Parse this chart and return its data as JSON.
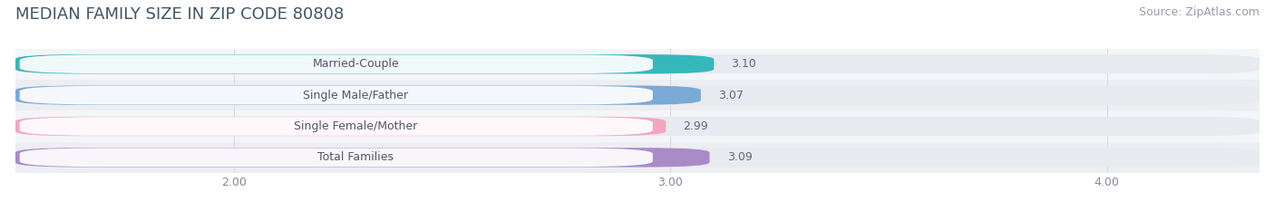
{
  "title": "MEDIAN FAMILY SIZE IN ZIP CODE 80808",
  "source": "Source: ZipAtlas.com",
  "categories": [
    "Married-Couple",
    "Single Male/Father",
    "Single Female/Mother",
    "Total Families"
  ],
  "values": [
    3.1,
    3.07,
    2.99,
    3.09
  ],
  "bar_colors": [
    "#35b8bc",
    "#7baad6",
    "#f4a6c0",
    "#a98bc8"
  ],
  "label_text_color": "#555566",
  "value_text_color": "#666677",
  "background_color": "#ffffff",
  "bar_bg_color": "#e8eaf0",
  "row_bg_colors": [
    "#f4f5f8",
    "#edeef2"
  ],
  "grid_color": "#d8dae0",
  "xlim": [
    1.5,
    4.35
  ],
  "xticks": [
    2.0,
    3.0,
    4.0
  ],
  "xtick_labels": [
    "2.00",
    "3.00",
    "4.00"
  ],
  "title_fontsize": 13,
  "source_fontsize": 9,
  "label_fontsize": 9,
  "value_fontsize": 9,
  "tick_fontsize": 9
}
